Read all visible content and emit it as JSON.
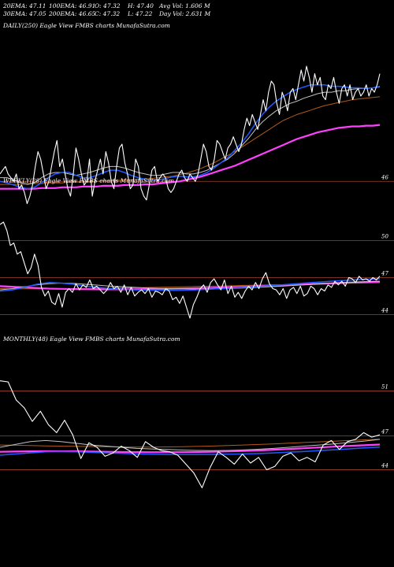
{
  "header": {
    "ema20": "20EMA: 47.11",
    "ema30": "30EMA: 47.05",
    "ema100": "100EMA: 46.91",
    "ema200": "200EMA: 46.65",
    "open": "O: 47.32",
    "close": "C: 47.32",
    "high": "H: 47.40",
    "low": "L: 47.22",
    "avg_vol": "Avg Vol: 1.606  M",
    "day_vol": "Day Vol: 2.631 M"
  },
  "panels": {
    "daily": {
      "title": "DAILY(250) Eagle  View  FMBS charts MunafaSutra.com"
    },
    "weekly": {
      "title": "WEEKLY(28)  Eagle  View  FMBS charts MunafaSutra.com"
    },
    "monthly": {
      "title": "MONTHLY(48) Eagle  View  FMBS charts MunafaSutra.com"
    }
  },
  "colors": {
    "background": "#000000",
    "price": "#ffffff",
    "ema_short": "#c0c0c0",
    "ema_mid": "#1e5aff",
    "ema_long": "#ff40ff",
    "ema_200": "#b05a1a",
    "level_line": "#a04030"
  },
  "chart_data": [
    {
      "type": "line",
      "name": "daily",
      "title": "DAILY(250) Eagle  View  FMBS charts MunafaSutra.com",
      "ylim": [
        45.6,
        47.7
      ],
      "tick_labels": [
        "46"
      ],
      "levels": [
        46.0
      ],
      "series": [
        {
          "role": "price",
          "values": [
            46.1,
            46.15,
            46.2,
            46.1,
            46.05,
            46.0,
            46.1,
            45.9,
            45.95,
            45.85,
            45.7,
            45.8,
            45.95,
            46.2,
            46.4,
            46.3,
            46.1,
            45.9,
            46.0,
            46.2,
            46.4,
            46.55,
            46.2,
            46.3,
            46.1,
            45.9,
            45.8,
            46.1,
            46.45,
            46.3,
            46.1,
            45.95,
            46.0,
            46.3,
            45.8,
            46.0,
            46.15,
            46.3,
            46.1,
            46.4,
            46.25,
            46.0,
            45.9,
            46.2,
            46.45,
            46.5,
            46.25,
            46.1,
            45.9,
            45.95,
            46.3,
            46.2,
            45.9,
            45.8,
            45.75,
            45.95,
            46.15,
            46.2,
            46.0,
            46.05,
            46.1,
            46.05,
            45.9,
            45.85,
            45.9,
            46.0,
            46.1,
            46.15,
            46.05,
            46.0,
            46.1,
            46.05,
            46.0,
            46.1,
            46.3,
            46.5,
            46.4,
            46.2,
            46.15,
            46.3,
            46.55,
            46.5,
            46.4,
            46.3,
            46.45,
            46.5,
            46.6,
            46.5,
            46.4,
            46.5,
            46.7,
            46.85,
            46.75,
            46.9,
            46.8,
            46.7,
            46.9,
            47.1,
            46.95,
            47.2,
            47.35,
            47.3,
            47.05,
            46.9,
            47.2,
            47.1,
            46.95,
            47.2,
            47.25,
            47.1,
            47.3,
            47.5,
            47.35,
            47.55,
            47.4,
            47.2,
            47.45,
            47.3,
            47.4,
            47.15,
            47.1,
            47.3,
            47.25,
            47.4,
            47.2,
            47.05,
            47.25,
            47.3,
            47.15,
            47.3,
            47.1,
            47.2,
            47.25,
            47.15,
            47.2,
            47.3,
            47.15,
            47.25,
            47.2,
            47.3,
            47.45
          ]
        },
        {
          "role": "ema_short",
          "values": [
            46.05,
            46.05,
            46.02,
            45.98,
            45.96,
            45.98,
            46.05,
            46.1,
            46.12,
            46.12,
            46.1,
            46.08,
            46.1,
            46.12,
            46.15,
            46.18,
            46.2,
            46.2,
            46.18,
            46.15,
            46.12,
            46.1,
            46.08,
            46.08,
            46.1,
            46.12,
            46.12,
            46.1,
            46.1,
            46.12,
            46.15,
            46.2,
            46.25,
            46.3,
            46.38,
            46.48,
            46.58,
            46.7,
            46.8,
            46.88,
            46.95,
            47.0,
            47.05,
            47.08,
            47.12,
            47.15,
            47.18,
            47.2,
            47.2,
            47.22,
            47.22,
            47.24,
            47.25,
            47.25,
            47.26,
            47.27
          ]
        },
        {
          "role": "ema_mid",
          "values": [
            46.0,
            45.98,
            45.95,
            45.92,
            45.9,
            45.92,
            45.98,
            46.05,
            46.1,
            46.12,
            46.12,
            46.08,
            46.05,
            46.05,
            46.08,
            46.12,
            46.15,
            46.15,
            46.12,
            46.08,
            46.05,
            46.03,
            46.02,
            46.02,
            46.04,
            46.06,
            46.07,
            46.06,
            46.06,
            46.08,
            46.12,
            46.18,
            46.25,
            46.32,
            46.42,
            46.52,
            46.64,
            46.78,
            46.9,
            47.0,
            47.08,
            47.14,
            47.2,
            47.24,
            47.27,
            47.3,
            47.3,
            47.3,
            47.28,
            47.28,
            47.27,
            47.26,
            47.26,
            47.25,
            47.26,
            47.28
          ]
        },
        {
          "role": "ema_200",
          "values": [
            45.96,
            45.96,
            45.96,
            45.96,
            45.97,
            45.97,
            45.97,
            45.98,
            45.98,
            45.98,
            45.99,
            45.99,
            45.99,
            46.0,
            46.0,
            46.01,
            46.01,
            46.01,
            46.02,
            46.02,
            46.03,
            46.03,
            46.04,
            46.05,
            46.06,
            46.07,
            46.09,
            46.11,
            46.14,
            46.17,
            46.21,
            46.25,
            46.3,
            46.35,
            46.4,
            46.46,
            46.52,
            46.58,
            46.64,
            46.7,
            46.76,
            46.82,
            46.86,
            46.9,
            46.93,
            46.96,
            46.99,
            47.02,
            47.04,
            47.06,
            47.08,
            47.1,
            47.11,
            47.12,
            47.13,
            47.14
          ]
        },
        {
          "role": "ema_long",
          "values": [
            45.9,
            45.9,
            45.9,
            45.9,
            45.9,
            45.9,
            45.91,
            45.91,
            45.91,
            45.92,
            45.92,
            45.92,
            45.93,
            45.93,
            45.93,
            45.94,
            45.94,
            45.94,
            45.95,
            45.95,
            45.95,
            45.96,
            45.96,
            45.97,
            45.98,
            45.99,
            46.0,
            46.02,
            46.04,
            46.06,
            46.09,
            46.12,
            46.15,
            46.18,
            46.21,
            46.25,
            46.29,
            46.33,
            46.37,
            46.41,
            46.45,
            46.49,
            46.53,
            46.57,
            46.6,
            46.63,
            46.66,
            46.68,
            46.7,
            46.72,
            46.73,
            46.74,
            46.74,
            46.75,
            46.75,
            46.76
          ]
        }
      ]
    },
    {
      "type": "line",
      "name": "weekly",
      "title": "WEEKLY(28)  Eagle  View  FMBS charts MunafaSutra.com",
      "ylim": [
        43.0,
        51.5
      ],
      "tick_labels": [
        "50",
        "47",
        "44"
      ],
      "levels": [
        50,
        47,
        44
      ],
      "series": [
        {
          "role": "price",
          "values": [
            51.3,
            51.5,
            50.8,
            49.6,
            49.8,
            48.9,
            49.1,
            48.2,
            47.3,
            47.8,
            48.9,
            48.0,
            46.2,
            45.5,
            45.9,
            45.0,
            44.8,
            45.7,
            44.6,
            45.8,
            46.1,
            45.8,
            46.5,
            46.0,
            46.4,
            46.2,
            46.8,
            46.1,
            46.3,
            46.0,
            45.7,
            46.0,
            46.6,
            46.1,
            46.3,
            45.8,
            46.4,
            45.6,
            46.2,
            45.5,
            45.8,
            46.0,
            45.7,
            46.1,
            45.4,
            45.9,
            45.8,
            45.6,
            46.1,
            45.9,
            45.2,
            45.4,
            44.9,
            45.5,
            44.6,
            43.7,
            44.8,
            45.4,
            46.1,
            46.4,
            45.8,
            46.6,
            46.9,
            46.4,
            46.0,
            46.8,
            45.7,
            46.3,
            45.4,
            45.8,
            45.3,
            45.9,
            46.3,
            46.0,
            46.6,
            46.1,
            46.9,
            47.4,
            46.5,
            46.1,
            46.0,
            45.6,
            46.1,
            45.3,
            46.0,
            46.2,
            45.7,
            46.3,
            45.5,
            45.7,
            46.3,
            46.1,
            45.6,
            46.1,
            45.9,
            46.4,
            46.2,
            46.7,
            46.4,
            46.7,
            46.3,
            47.0,
            46.9,
            46.6,
            47.1,
            46.8,
            46.9,
            46.7,
            47.0,
            46.8,
            47.1
          ]
        },
        {
          "role": "ema_short",
          "values": [
            46.0,
            46.1,
            46.25,
            46.4,
            46.5,
            46.55,
            46.52,
            46.45,
            46.38,
            46.3,
            46.25,
            46.2,
            46.15,
            46.12,
            46.1,
            46.08,
            46.05,
            46.05,
            46.08,
            46.12,
            46.16,
            46.2,
            46.25,
            46.3,
            46.36,
            46.42,
            46.48,
            46.53,
            46.58,
            46.62,
            46.66,
            46.7
          ]
        },
        {
          "role": "ema_mid",
          "values": [
            45.9,
            46.0,
            46.2,
            46.45,
            46.6,
            46.55,
            46.45,
            46.3,
            46.2,
            46.1,
            46.05,
            46.0,
            45.98,
            45.97,
            45.96,
            45.97,
            46.0,
            46.05,
            46.1,
            46.15,
            46.2,
            46.26,
            46.33,
            46.4,
            46.48,
            46.56,
            46.63,
            46.7,
            46.76,
            46.82,
            46.87,
            46.9
          ]
        },
        {
          "role": "ema_long",
          "values": [
            46.3,
            46.25,
            46.2,
            46.15,
            46.1,
            46.08,
            46.06,
            46.05,
            46.04,
            46.04,
            46.04,
            46.05,
            46.06,
            46.07,
            46.09,
            46.11,
            46.13,
            46.16,
            46.19,
            46.22,
            46.25,
            46.29,
            46.33,
            46.37,
            46.41,
            46.45,
            46.49,
            46.53,
            46.57,
            46.61,
            46.64,
            46.67
          ]
        },
        {
          "role": "ema_200",
          "values": [
            46.1,
            46.09,
            46.08,
            46.08,
            46.08,
            46.09,
            46.1,
            46.11,
            46.12,
            46.13,
            46.15,
            46.17,
            46.19,
            46.21,
            46.23,
            46.25,
            46.27,
            46.29,
            46.31,
            46.33,
            46.36,
            46.38,
            46.4,
            46.42,
            46.44,
            46.46,
            46.48,
            46.5,
            46.52,
            46.54,
            46.56,
            46.58
          ]
        }
      ]
    },
    {
      "type": "line",
      "name": "monthly",
      "title": "MONTHLY(48) Eagle  View  FMBS charts MunafaSutra.com",
      "ylim": [
        42.5,
        52.5
      ],
      "tick_labels": [
        "51",
        "47",
        "44"
      ],
      "levels": [
        51,
        47,
        44
      ],
      "series": [
        {
          "role": "price",
          "values": [
            51.9,
            51.8,
            50.2,
            49.5,
            48.3,
            49.2,
            48.0,
            47.3,
            48.4,
            47.1,
            45.0,
            46.4,
            46.0,
            45.2,
            45.5,
            46.1,
            45.7,
            45.1,
            46.5,
            46.0,
            45.7,
            45.6,
            45.3,
            44.5,
            43.7,
            42.4,
            44.2,
            45.6,
            45.1,
            44.5,
            45.4,
            44.6,
            45.1,
            44.0,
            44.3,
            45.2,
            45.5,
            44.8,
            45.1,
            44.7,
            46.2,
            46.6,
            45.8,
            46.5,
            46.7,
            47.3,
            46.9,
            47.1
          ]
        },
        {
          "role": "ema_short",
          "values": [
            46.0,
            46.25,
            46.5,
            46.6,
            46.5,
            46.35,
            46.2,
            46.1,
            46.0,
            45.9,
            45.85,
            45.8,
            45.75,
            45.72,
            45.7,
            45.72,
            45.76,
            45.82,
            45.9,
            46.0,
            46.1,
            46.2,
            46.3,
            46.42,
            46.55,
            46.7
          ]
        },
        {
          "role": "ema_mid",
          "values": [
            45.3,
            45.4,
            45.5,
            45.6,
            45.62,
            45.6,
            45.55,
            45.5,
            45.45,
            45.4,
            45.38,
            45.36,
            45.35,
            45.35,
            45.36,
            45.38,
            45.4,
            45.44,
            45.5,
            45.56,
            45.62,
            45.7,
            45.78,
            45.86,
            45.94,
            46.02
          ]
        },
        {
          "role": "ema_long",
          "values": [
            45.6,
            45.62,
            45.64,
            45.65,
            45.65,
            45.64,
            45.62,
            45.6,
            45.58,
            45.57,
            45.56,
            45.56,
            45.57,
            45.58,
            45.6,
            45.63,
            45.67,
            45.72,
            45.78,
            45.84,
            45.91,
            45.98,
            46.05,
            46.12,
            46.18,
            46.24
          ]
        },
        {
          "role": "ema_200",
          "values": [
            46.2,
            46.18,
            46.15,
            46.12,
            46.1,
            46.08,
            46.06,
            46.04,
            46.03,
            46.02,
            46.02,
            46.03,
            46.05,
            46.08,
            46.11,
            46.15,
            46.2,
            46.25,
            46.3,
            46.36,
            46.42,
            46.48,
            46.54,
            46.6,
            46.66,
            46.72
          ]
        }
      ]
    }
  ]
}
